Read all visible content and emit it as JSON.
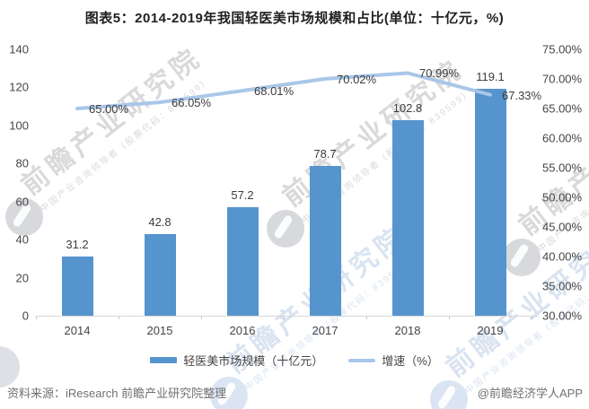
{
  "title": "图表5：2014-2019年我国轻医美市场规模和占比(单位：十亿元，%)",
  "chart_data": {
    "type": "bar+line",
    "categories": [
      "2014",
      "2015",
      "2016",
      "2017",
      "2018",
      "2019"
    ],
    "series": [
      {
        "name": "轻医美市场规模（十亿元）",
        "type": "bar",
        "axis": "left",
        "color": "#5694ce",
        "values": [
          31.2,
          42.8,
          57.2,
          78.7,
          102.8,
          119.1
        ],
        "labels": [
          "31.2",
          "42.8",
          "57.2",
          "78.7",
          "102.8",
          "119.1"
        ]
      },
      {
        "name": "增速（%）",
        "type": "line",
        "axis": "right",
        "color": "#a9c7e8",
        "values": [
          65.0,
          66.05,
          68.01,
          70.02,
          70.99,
          67.33
        ],
        "labels": [
          "65.00%",
          "66.05%",
          "68.01%",
          "70.02%",
          "70.99%",
          "67.33%"
        ]
      }
    ],
    "left_axis": {
      "min": 0,
      "max": 140,
      "tick_step": 20,
      "ticks": [
        "0",
        "20",
        "40",
        "60",
        "80",
        "100",
        "120",
        "140"
      ]
    },
    "right_axis": {
      "min": 30,
      "max": 75,
      "tick_step": 5,
      "ticks": [
        "30.00%",
        "35.00%",
        "40.00%",
        "45.00%",
        "50.00%",
        "55.00%",
        "60.00%",
        "65.00%",
        "70.00%",
        "75.00%"
      ]
    },
    "grid": false,
    "legend_position": "bottom"
  },
  "legend": {
    "items": [
      {
        "label": "轻医美市场规模（十亿元）",
        "swatch": "bar",
        "color": "#5694ce"
      },
      {
        "label": "增速（%）",
        "swatch": "line",
        "color": "#a9c7e8"
      }
    ]
  },
  "footer": {
    "source": "资料来源：iResearch 前瞻产业研究院整理",
    "credit": "@前瞻经济学人APP"
  },
  "watermark": {
    "big_text": "前瞻产业研究院",
    "small_text": "中国产业咨询领导者（股票代码：839599）"
  }
}
